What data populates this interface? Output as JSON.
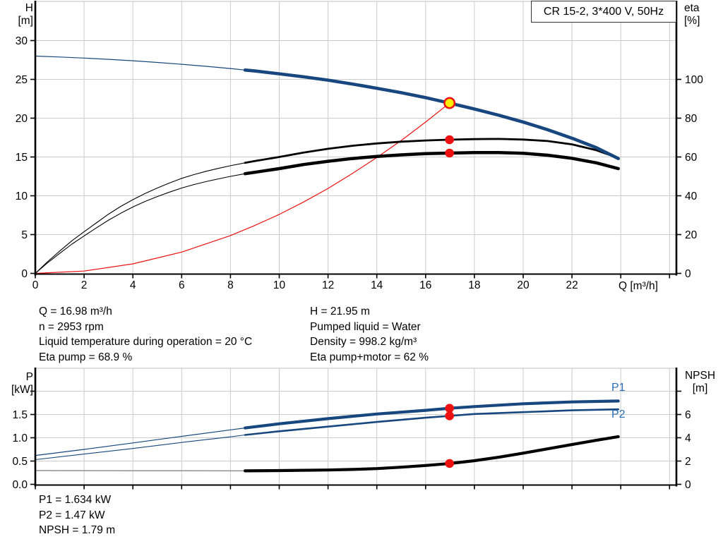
{
  "title_box": {
    "label": "CR 15-2, 3*400 V, 50Hz"
  },
  "colors": {
    "curve_blue": "#17477e",
    "label_blue": "#2a6cb3",
    "red": "#ee1111",
    "yellow": "#ffee00",
    "black": "#000000",
    "grid": "#cccccc",
    "axis": "#000000",
    "thin_gray": "#909090"
  },
  "axis_corner_labels": {
    "h": [
      "H",
      "[m]"
    ],
    "eta": [
      "eta",
      "[%]"
    ],
    "p": [
      "P",
      "[kW]"
    ],
    "npsh": [
      "NPSH",
      "[m]"
    ]
  },
  "annotations": {
    "left": [
      "Q = 16.98 m³/h",
      "n = 2953 rpm",
      "Liquid temperature during operation = 20 °C",
      "Eta pump = 68.9 %"
    ],
    "right": [
      "H = 21.95 m",
      "Pumped liquid = Water",
      "Density = 998.2 kg/m³",
      "Eta pump+motor = 62 %"
    ],
    "bottom": [
      "P1 = 1.634 kW",
      "P2 = 1.47 kW",
      "NPSH = 1.79 m"
    ]
  },
  "curve_labels": {
    "p1": "P1",
    "p2": "P2"
  },
  "chart_data": [
    {
      "type": "line",
      "title": "CR 15-2, 3*400 V, 50Hz",
      "xlabel": "Q [m³/h]",
      "ylabel_left": "H [m]",
      "ylabel_right": "eta [%]",
      "xlim": [
        0,
        26.3
      ],
      "ylim_left": [
        0,
        35
      ],
      "ylim_right": [
        0,
        140
      ],
      "grid": true,
      "x_ticks": [
        {
          "v": 0,
          "label": "0"
        },
        {
          "v": 2,
          "label": "2"
        },
        {
          "v": 4,
          "label": "4"
        },
        {
          "v": 6,
          "label": "6"
        },
        {
          "v": 8,
          "label": "8"
        },
        {
          "v": 10,
          "label": "10"
        },
        {
          "v": 12,
          "label": "12"
        },
        {
          "v": 14,
          "label": "14"
        },
        {
          "v": 16,
          "label": "16"
        },
        {
          "v": 18,
          "label": "18"
        },
        {
          "v": 20,
          "label": "20"
        },
        {
          "v": 22,
          "label": "22"
        },
        {
          "v": 24,
          "label": ""
        },
        {
          "v": 26,
          "label": ""
        }
      ],
      "y_ticks_left": [
        {
          "v": 0,
          "label": "0"
        },
        {
          "v": 5,
          "label": "5"
        },
        {
          "v": 10,
          "label": "10"
        },
        {
          "v": 15,
          "label": "15"
        },
        {
          "v": 20,
          "label": "20"
        },
        {
          "v": 25,
          "label": "25"
        },
        {
          "v": 30,
          "label": "30"
        }
      ],
      "y_ticks_right": [
        {
          "v": 0,
          "label": "0"
        },
        {
          "v": 20,
          "label": "20"
        },
        {
          "v": 40,
          "label": "40"
        },
        {
          "v": 60,
          "label": "60"
        },
        {
          "v": 80,
          "label": "80"
        },
        {
          "v": 100,
          "label": "100"
        }
      ],
      "series": [
        {
          "name": "system-curve",
          "axis": "R",
          "color": "#ee1111",
          "width_thin": 1.2,
          "width_thick": 1.2,
          "thin_until": 30,
          "points": [
            [
              0,
              0
            ],
            [
              2,
              1.2
            ],
            [
              4,
              4.9
            ],
            [
              6,
              11.0
            ],
            [
              8,
              19.5
            ],
            [
              9,
              24.7
            ],
            [
              10,
              30.4
            ],
            [
              11,
              36.8
            ],
            [
              12,
              43.8
            ],
            [
              13,
              51.5
            ],
            [
              14,
              59.7
            ],
            [
              15,
              68.5
            ],
            [
              16,
              78.0
            ],
            [
              16.98,
              87.8
            ]
          ]
        },
        {
          "name": "eta-pump-curve",
          "axis": "R",
          "color": "#000000",
          "width_thin": 1.1,
          "width_thick": 2.8,
          "thin_until": 8.6,
          "points": [
            [
              0,
              0
            ],
            [
              0.5,
              6
            ],
            [
              1,
              11.5
            ],
            [
              1.5,
              16.8
            ],
            [
              2,
              21.5
            ],
            [
              2.5,
              26
            ],
            [
              3,
              30.5
            ],
            [
              3.5,
              34.5
            ],
            [
              4,
              38
            ],
            [
              4.5,
              41.2
            ],
            [
              5,
              44
            ],
            [
              5.5,
              46.6
            ],
            [
              6,
              49
            ],
            [
              6.5,
              50.9
            ],
            [
              7,
              52.6
            ],
            [
              7.5,
              54.1
            ],
            [
              8,
              55.5
            ],
            [
              8.6,
              57
            ],
            [
              9,
              57.9
            ],
            [
              10,
              60
            ],
            [
              11,
              62.3
            ],
            [
              12,
              64.2
            ],
            [
              13,
              65.8
            ],
            [
              14,
              67
            ],
            [
              15,
              67.9
            ],
            [
              16,
              68.5
            ],
            [
              16.98,
              68.9
            ],
            [
              18,
              69.2
            ],
            [
              19,
              69.3
            ],
            [
              20,
              69
            ],
            [
              21,
              68.2
            ],
            [
              22,
              66.5
            ],
            [
              23,
              63.5
            ],
            [
              23.9,
              59.5
            ]
          ]
        },
        {
          "name": "eta-pump-motor-curve",
          "axis": "R",
          "color": "#000000",
          "width_thin": 1.1,
          "width_thick": 4.5,
          "thin_until": 8.6,
          "points": [
            [
              0,
              0
            ],
            [
              0.5,
              5.4
            ],
            [
              1,
              10.3
            ],
            [
              1.5,
              15.1
            ],
            [
              2,
              19.3
            ],
            [
              2.5,
              23.4
            ],
            [
              3,
              27.4
            ],
            [
              3.5,
              31
            ],
            [
              4,
              34.2
            ],
            [
              4.5,
              37.1
            ],
            [
              5,
              39.6
            ],
            [
              5.5,
              41.9
            ],
            [
              6,
              44
            ],
            [
              6.5,
              45.8
            ],
            [
              7,
              47.3
            ],
            [
              7.5,
              48.7
            ],
            [
              8,
              50
            ],
            [
              8.6,
              51.4
            ],
            [
              9,
              52.1
            ],
            [
              10,
              54
            ],
            [
              11,
              56.1
            ],
            [
              12,
              57.8
            ],
            [
              13,
              59.2
            ],
            [
              14,
              60.3
            ],
            [
              15,
              61.1
            ],
            [
              16,
              61.7
            ],
            [
              16.98,
              62
            ],
            [
              18,
              62.3
            ],
            [
              19,
              62.3
            ],
            [
              20,
              61.9
            ],
            [
              21,
              60.9
            ],
            [
              22,
              59.3
            ],
            [
              23,
              57
            ],
            [
              23.9,
              54
            ]
          ]
        },
        {
          "name": "head-curve",
          "axis": "L",
          "color": "#17477e",
          "width_thin": 1.2,
          "width_thick": 4.6,
          "thin_until": 8.6,
          "points": [
            [
              0,
              28.0
            ],
            [
              1,
              27.88
            ],
            [
              2,
              27.75
            ],
            [
              3,
              27.58
            ],
            [
              4,
              27.4
            ],
            [
              5,
              27.18
            ],
            [
              6,
              26.95
            ],
            [
              7,
              26.68
            ],
            [
              8,
              26.4
            ],
            [
              8.6,
              26.2
            ],
            [
              9,
              26.08
            ],
            [
              10,
              25.72
            ],
            [
              11,
              25.33
            ],
            [
              12,
              24.9
            ],
            [
              13,
              24.4
            ],
            [
              14,
              23.85
            ],
            [
              15,
              23.28
            ],
            [
              16,
              22.65
            ],
            [
              16.98,
              21.95
            ],
            [
              18,
              21.18
            ],
            [
              19,
              20.38
            ],
            [
              20,
              19.5
            ],
            [
              21,
              18.52
            ],
            [
              22,
              17.42
            ],
            [
              23,
              16.2
            ],
            [
              23.9,
              14.8
            ]
          ]
        }
      ],
      "markers": [
        {
          "name": "duty-point",
          "q": 16.98,
          "v": 21.95,
          "axis": "L",
          "style": "duty"
        },
        {
          "name": "eta-pump-point",
          "q": 16.98,
          "v": 68.9,
          "axis": "R",
          "style": "dot"
        },
        {
          "name": "eta-pump-motor-point",
          "q": 16.98,
          "v": 62,
          "axis": "R",
          "style": "dot"
        }
      ]
    },
    {
      "type": "line",
      "xlabel": "",
      "ylabel_left": "P [kW]",
      "ylabel_right": "NPSH [m]",
      "xlim": [
        0,
        26.3
      ],
      "ylim_left": [
        0,
        2.5
      ],
      "ylim_right": [
        0,
        10
      ],
      "grid": true,
      "x_ticks": [
        {
          "v": 0,
          "label": ""
        },
        {
          "v": 2,
          "label": ""
        },
        {
          "v": 4,
          "label": ""
        },
        {
          "v": 6,
          "label": ""
        },
        {
          "v": 8,
          "label": ""
        },
        {
          "v": 10,
          "label": ""
        },
        {
          "v": 12,
          "label": ""
        },
        {
          "v": 14,
          "label": ""
        },
        {
          "v": 16,
          "label": ""
        },
        {
          "v": 18,
          "label": ""
        },
        {
          "v": 20,
          "label": ""
        },
        {
          "v": 22,
          "label": ""
        },
        {
          "v": 24,
          "label": ""
        },
        {
          "v": 26,
          "label": ""
        }
      ],
      "y_ticks_left": [
        {
          "v": 0,
          "label": "0.0"
        },
        {
          "v": 0.5,
          "label": "0.5"
        },
        {
          "v": 1,
          "label": "1.0"
        },
        {
          "v": 1.5,
          "label": "1.5"
        },
        {
          "v": 2,
          "label": ""
        }
      ],
      "y_ticks_right": [
        {
          "v": 0,
          "label": "0"
        },
        {
          "v": 2,
          "label": "2"
        },
        {
          "v": 4,
          "label": "4"
        },
        {
          "v": 6,
          "label": "6"
        },
        {
          "v": 8,
          "label": ""
        }
      ],
      "series": [
        {
          "name": "npsh-curve",
          "axis": "R",
          "color": "#000000",
          "thin_color": "#909090",
          "width_thin": 1.5,
          "width_thick": 4.2,
          "thin_until": 8.6,
          "points": [
            [
              0,
              1.18
            ],
            [
              4,
              1.17
            ],
            [
              8,
              1.16
            ],
            [
              8.6,
              1.16
            ],
            [
              10,
              1.18
            ],
            [
              12,
              1.23
            ],
            [
              13,
              1.28
            ],
            [
              14,
              1.35
            ],
            [
              15,
              1.47
            ],
            [
              16,
              1.62
            ],
            [
              16.98,
              1.79
            ],
            [
              18,
              2.03
            ],
            [
              19,
              2.33
            ],
            [
              20,
              2.68
            ],
            [
              21,
              3.05
            ],
            [
              22,
              3.42
            ],
            [
              23,
              3.78
            ],
            [
              23.9,
              4.1
            ]
          ]
        },
        {
          "name": "p2-curve",
          "axis": "L",
          "color": "#17477e",
          "width_thin": 1.1,
          "width_thick": 2.6,
          "thin_until": 8.6,
          "points": [
            [
              0,
              0.53
            ],
            [
              2,
              0.65
            ],
            [
              4,
              0.77
            ],
            [
              6,
              0.9
            ],
            [
              8,
              1.02
            ],
            [
              8.6,
              1.06
            ],
            [
              10,
              1.14
            ],
            [
              12,
              1.24
            ],
            [
              14,
              1.34
            ],
            [
              16,
              1.43
            ],
            [
              16.98,
              1.47
            ],
            [
              18,
              1.51
            ],
            [
              20,
              1.55
            ],
            [
              22,
              1.59
            ],
            [
              23.9,
              1.61
            ]
          ]
        },
        {
          "name": "p1-curve",
          "axis": "L",
          "color": "#17477e",
          "width_thin": 1.2,
          "width_thick": 4.2,
          "thin_until": 8.6,
          "points": [
            [
              0,
              0.62
            ],
            [
              2,
              0.75
            ],
            [
              4,
              0.89
            ],
            [
              6,
              1.03
            ],
            [
              8,
              1.17
            ],
            [
              8.6,
              1.21
            ],
            [
              10,
              1.3
            ],
            [
              12,
              1.41
            ],
            [
              14,
              1.51
            ],
            [
              16,
              1.59
            ],
            [
              16.98,
              1.634
            ],
            [
              18,
              1.67
            ],
            [
              20,
              1.73
            ],
            [
              22,
              1.77
            ],
            [
              23.9,
              1.79
            ]
          ]
        }
      ],
      "markers": [
        {
          "name": "p1-point",
          "q": 16.98,
          "v": 1.634,
          "axis": "L",
          "style": "dot"
        },
        {
          "name": "p2-point",
          "q": 16.98,
          "v": 1.47,
          "axis": "L",
          "style": "dot"
        },
        {
          "name": "npsh-point",
          "q": 16.98,
          "v": 1.79,
          "axis": "R",
          "style": "dot"
        }
      ]
    }
  ]
}
